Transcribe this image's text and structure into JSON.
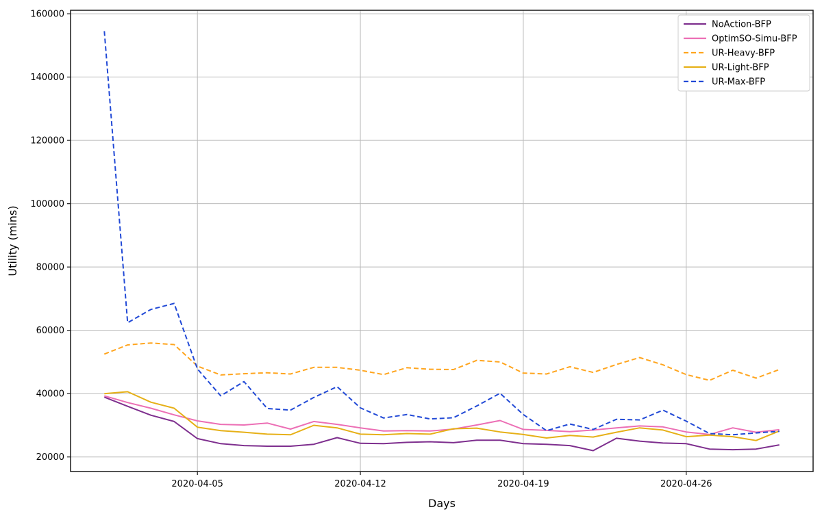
{
  "chart_data": {
    "type": "line",
    "title": "",
    "xlabel": "Days",
    "ylabel": "Utility (mins)",
    "grid": true,
    "legend_position": "upper right",
    "x": [
      "2020-04-01",
      "2020-04-02",
      "2020-04-03",
      "2020-04-04",
      "2020-04-05",
      "2020-04-06",
      "2020-04-07",
      "2020-04-08",
      "2020-04-09",
      "2020-04-10",
      "2020-04-11",
      "2020-04-12",
      "2020-04-13",
      "2020-04-14",
      "2020-04-15",
      "2020-04-16",
      "2020-04-17",
      "2020-04-18",
      "2020-04-19",
      "2020-04-20",
      "2020-04-21",
      "2020-04-22",
      "2020-04-23",
      "2020-04-24",
      "2020-04-25",
      "2020-04-26",
      "2020-04-27",
      "2020-04-28",
      "2020-04-29",
      "2020-04-30"
    ],
    "x_ticks": [
      {
        "index": 4,
        "label": "2020-04-05"
      },
      {
        "index": 11,
        "label": "2020-04-12"
      },
      {
        "index": 18,
        "label": "2020-04-19"
      },
      {
        "index": 25,
        "label": "2020-04-26"
      }
    ],
    "y_ticks": [
      20000,
      40000,
      60000,
      80000,
      100000,
      120000,
      140000,
      160000
    ],
    "ylim": [
      15400,
      161100
    ],
    "x_margin_days": 1.45,
    "colors": {
      "grid": "#b9b9b9",
      "spine": "#1a1a1a",
      "background": "#ffffff",
      "legend_border": "#cccccc"
    },
    "series": [
      {
        "name": "NoAction-BFP",
        "color": "#7e2f8e",
        "dash": "solid",
        "values": [
          38900,
          36000,
          33200,
          31200,
          25800,
          24200,
          23600,
          23400,
          23400,
          24000,
          26100,
          24300,
          24200,
          24600,
          24800,
          24500,
          25300,
          25300,
          24200,
          24000,
          23600,
          22000,
          25900,
          25000,
          24400,
          24200,
          22500,
          22300,
          22500,
          23800
        ]
      },
      {
        "name": "OptimSO-Simu-BFP",
        "color": "#ec6fb5",
        "dash": "solid",
        "values": [
          39300,
          37200,
          35400,
          33300,
          31400,
          30300,
          30100,
          30700,
          28800,
          31200,
          30300,
          29200,
          28200,
          28300,
          28200,
          28800,
          30100,
          31500,
          28700,
          28400,
          28000,
          28500,
          29200,
          29800,
          29500,
          27900,
          27100,
          29200,
          27800,
          28600
        ]
      },
      {
        "name": "UR-Heavy-BFP",
        "color": "#ffa51e",
        "dash": "dashed",
        "values": [
          52500,
          55400,
          56000,
          55500,
          48700,
          45900,
          46300,
          46600,
          46200,
          48300,
          48300,
          47400,
          46000,
          48200,
          47700,
          47600,
          50500,
          50000,
          46500,
          46200,
          48500,
          46700,
          49200,
          51400,
          49100,
          46000,
          44200,
          47400,
          44900,
          47600
        ]
      },
      {
        "name": "UR-Light-BFP",
        "color": "#e6b017",
        "dash": "solid",
        "values": [
          40000,
          40600,
          37300,
          35400,
          29400,
          28300,
          27800,
          27200,
          27000,
          30000,
          29200,
          27200,
          27000,
          27400,
          27200,
          28900,
          29100,
          27900,
          27100,
          26000,
          26800,
          26300,
          27800,
          29200,
          28500,
          26400,
          26900,
          26400,
          25200,
          28200
        ]
      },
      {
        "name": "UR-Max-BFP",
        "color": "#2149d6",
        "dash": "dashed",
        "values": [
          154500,
          62400,
          66600,
          68500,
          47800,
          39300,
          43800,
          35300,
          34800,
          38800,
          42200,
          35500,
          32300,
          33400,
          32000,
          32400,
          36100,
          40100,
          33400,
          28300,
          30400,
          28700,
          31900,
          31700,
          34800,
          31300,
          27400,
          27000,
          27600,
          28100
        ]
      }
    ]
  }
}
